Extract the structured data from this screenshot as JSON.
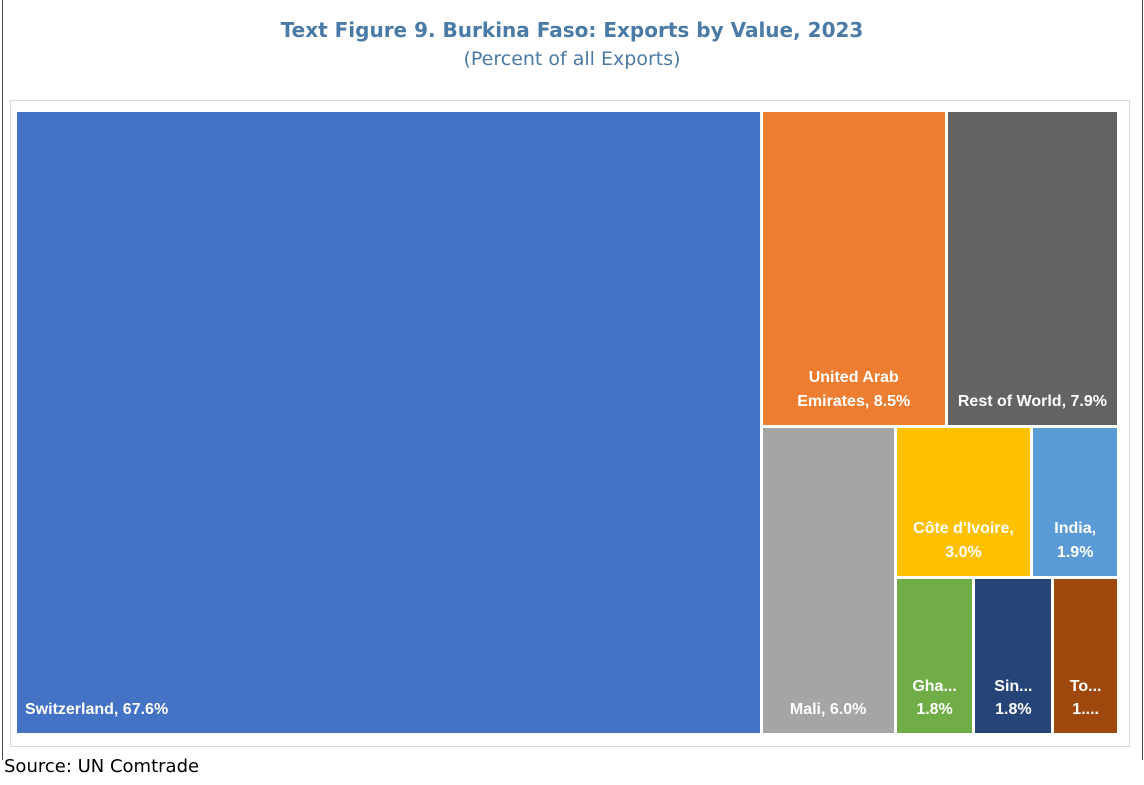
{
  "chart_data": {
    "type": "treemap",
    "title": "Text Figure 9. Burkina Faso: Exports by Value, 2023",
    "subtitle": "(Percent of all Exports)",
    "source": "Source: UN Comtrade",
    "values": [
      67.6,
      8.5,
      7.9,
      6.0,
      3.0,
      1.9,
      1.8,
      1.8,
      1.5
    ],
    "value_labels": [
      "Switzerland, 67.6%",
      "United Arab Emirates, 8.5%",
      "Rest of World, 7.9%",
      "Mali, 6.0%",
      "Côte d'Ivoire, 3.0%",
      "India, 1.9%",
      "Gha... 1.8%",
      "Sin... 1.8%",
      "To... 1...."
    ],
    "colors": [
      "#4472c4",
      "#ed7d31",
      "#636363",
      "#a5a5a5",
      "#ffc000",
      "#5b9bd5",
      "#70ad47",
      "#264478",
      "#9e480e"
    ]
  }
}
